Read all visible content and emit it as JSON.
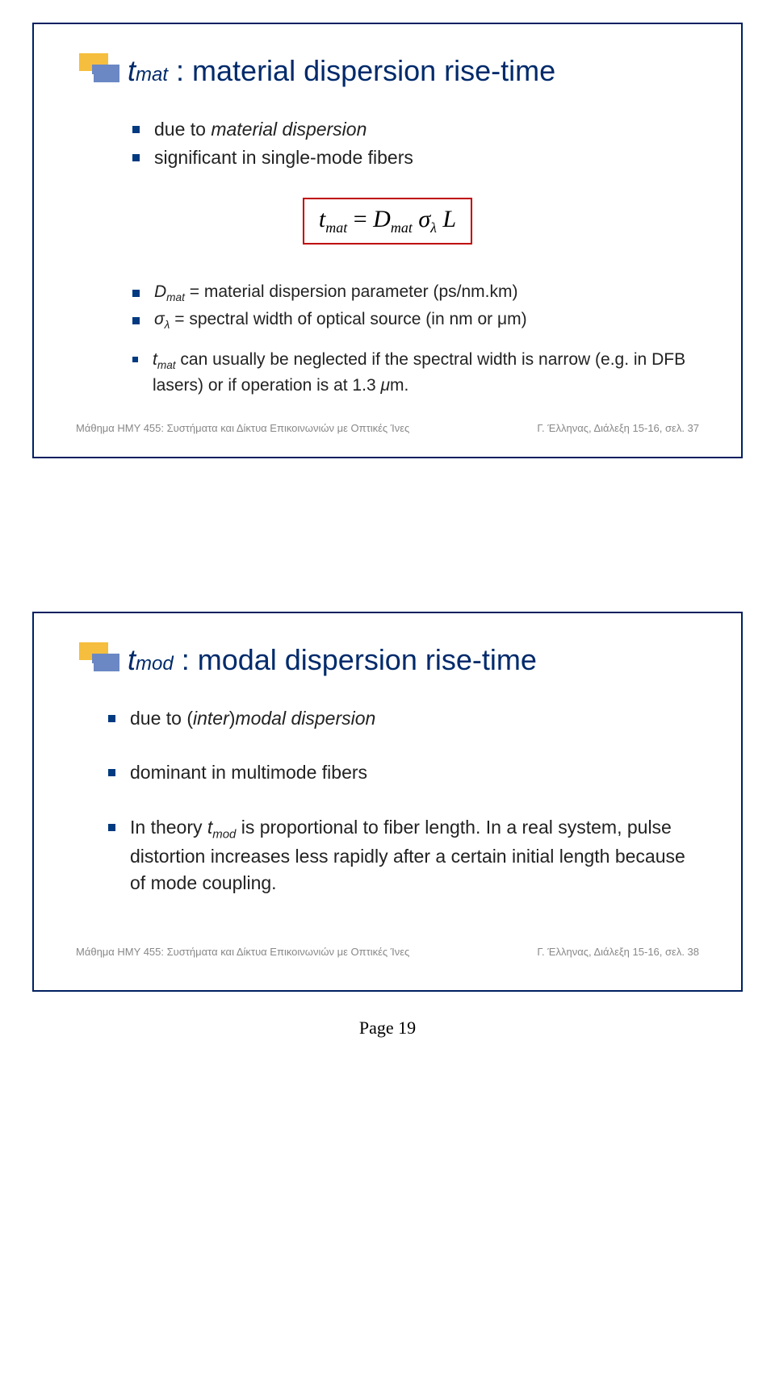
{
  "slide1": {
    "title_var": "t",
    "title_sub": "mat",
    "title_rest": " : material dispersion rise-time",
    "bullets_top": [
      "due to <span class=\"italic\">material dispersion</span>",
      "significant in single-mode fibers"
    ],
    "formula_html": "<span class=\"fi\">t</span><sub class=\"fs\">mat</sub> = <span class=\"fi\">D</span><sub class=\"fs\">mat</sub> <span class=\"fi\">σ</span><sub class=\"fs\">λ</sub> <span class=\"fi\">L</span>",
    "bullets_bottom": [
      "<span class=\"italic\">D<span class=\"subsc\">mat</span></span> = material dispersion parameter (ps/nm.km)",
      "<span class=\"italic\">σ<span class=\"subsc\">λ</span></span> = spectral width of optical source (in nm or μm)"
    ],
    "bullet_dot": "<span class=\"italic\">t<span class=\"subsc\">mat</span></span> can usually be neglected if the spectral width is narrow (e.g. in DFB lasers) or if operation is at 1.3 <span class=\"italic\">μ</span>m.",
    "footer_left": "Μάθημα ΗΜΥ 455: Συστήματα και Δίκτυα Επικοινωνιών με Οπτικές Ίνες",
    "footer_right": "Γ. Έλληνας, Διάλεξη 15-16,   σελ. 37"
  },
  "slide2": {
    "title_var": "t",
    "title_sub": "mod",
    "title_rest": " : modal dispersion rise-time",
    "bullets": [
      "due to (<span class=\"italic\">inter</span>)<span class=\"italic\">modal dispersion</span>",
      "dominant in multimode fibers",
      "In theory <span class=\"italic\">t<span class=\"subsc\">mod</span></span> is proportional to fiber length. In a real system, pulse distortion increases less rapidly after a certain initial length because of mode coupling."
    ],
    "footer_left": "Μάθημα ΗΜΥ 455: Συστήματα και Δίκτυα Επικοινωνιών με Οπτικές Ίνες",
    "footer_right": "Γ. Έλληνας, Διάλεξη 15-16,   σελ. 38"
  },
  "page_number": "Page 19",
  "colors": {
    "border": "#002060",
    "title": "#002a6b",
    "bullet_sq": "#003a80",
    "formula_border": "#c00000",
    "icon_yellow": "#f6be3e",
    "icon_blue": "#6b88c4",
    "footer_grey": "#888888"
  }
}
